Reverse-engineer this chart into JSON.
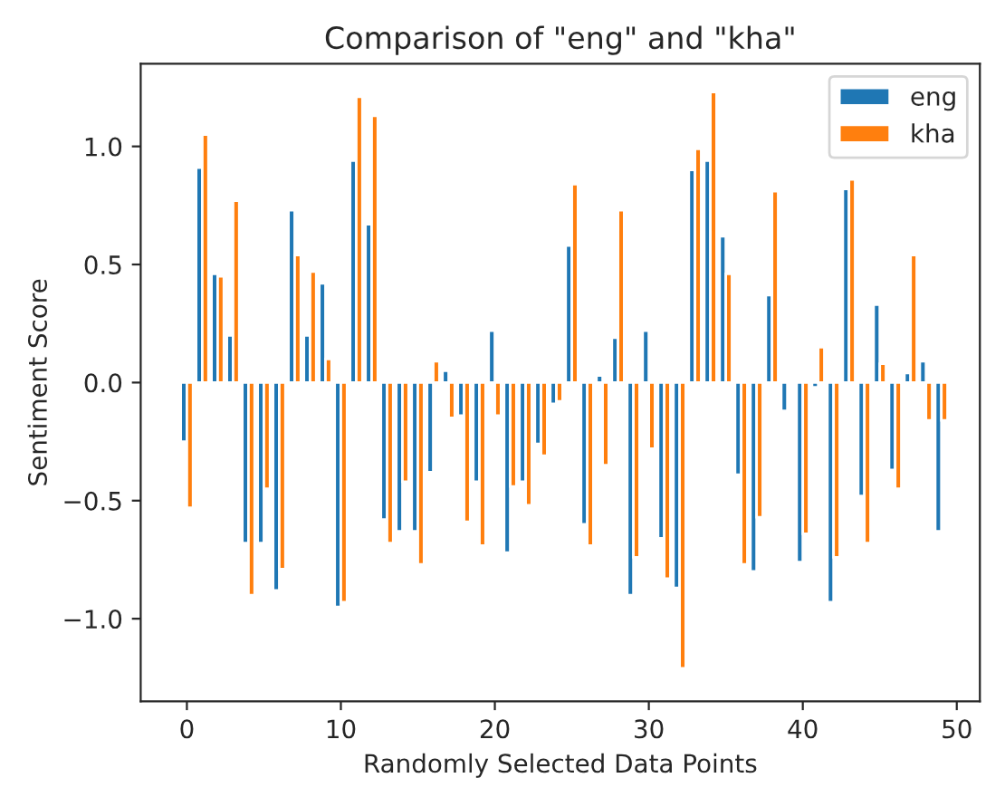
{
  "chart_data": {
    "type": "bar",
    "title": "Comparison of \"eng\" and \"kha\"",
    "xlabel": "Randomly Selected Data Points",
    "ylabel": "Sentiment Score",
    "x": [
      0,
      1,
      2,
      3,
      4,
      5,
      6,
      7,
      8,
      9,
      10,
      11,
      12,
      13,
      14,
      15,
      16,
      17,
      18,
      19,
      20,
      21,
      22,
      23,
      24,
      25,
      26,
      27,
      28,
      29,
      30,
      31,
      32,
      33,
      34,
      35,
      36,
      37,
      38,
      39,
      40,
      41,
      42,
      43,
      44,
      45,
      46,
      47,
      48,
      49
    ],
    "series": [
      {
        "name": "eng",
        "color": "#1f77b4",
        "values": [
          -0.25,
          0.91,
          0.46,
          0.2,
          -0.68,
          -0.68,
          -0.88,
          0.73,
          0.2,
          0.42,
          -0.95,
          0.94,
          0.67,
          -0.58,
          -0.63,
          -0.63,
          -0.38,
          0.05,
          -0.14,
          -0.42,
          0.22,
          -0.72,
          -0.42,
          -0.26,
          -0.09,
          0.58,
          -0.6,
          0.03,
          0.19,
          -0.9,
          0.22,
          -0.66,
          -0.87,
          0.9,
          0.94,
          0.62,
          -0.39,
          -0.8,
          0.37,
          -0.12,
          -0.76,
          -0.02,
          -0.93,
          0.82,
          -0.48,
          0.33,
          -0.37,
          0.04,
          0.09,
          -0.63
        ]
      },
      {
        "name": "kha",
        "color": "#ff7f0e",
        "values": [
          -0.53,
          1.05,
          0.45,
          0.77,
          -0.9,
          -0.45,
          -0.79,
          0.54,
          0.47,
          0.1,
          -0.93,
          1.21,
          1.13,
          -0.68,
          -0.42,
          -0.77,
          0.09,
          -0.15,
          -0.59,
          -0.69,
          -0.14,
          -0.44,
          -0.52,
          -0.31,
          -0.08,
          0.84,
          -0.69,
          -0.35,
          0.73,
          -0.74,
          -0.28,
          -0.83,
          -1.21,
          0.99,
          1.23,
          0.46,
          -0.77,
          -0.57,
          0.81,
          null,
          -0.64,
          0.15,
          -0.74,
          0.86,
          -0.68,
          0.08,
          -0.45,
          0.54,
          -0.16,
          -0.16
        ]
      }
    ],
    "xlim": [
      -3,
      51.5
    ],
    "xticks": [
      0,
      10,
      20,
      30,
      40,
      50
    ],
    "ylim": [
      -1.35,
      1.35
    ],
    "yticks": [
      {
        "value": -1,
        "label": "−1.0"
      },
      {
        "value": -0.5,
        "label": "−0.5"
      },
      {
        "value": 0,
        "label": "0.0"
      },
      {
        "value": 0.5,
        "label": "0.5"
      },
      {
        "value": 1,
        "label": "1.0"
      }
    ],
    "legend": "top right",
    "grid": false
  }
}
